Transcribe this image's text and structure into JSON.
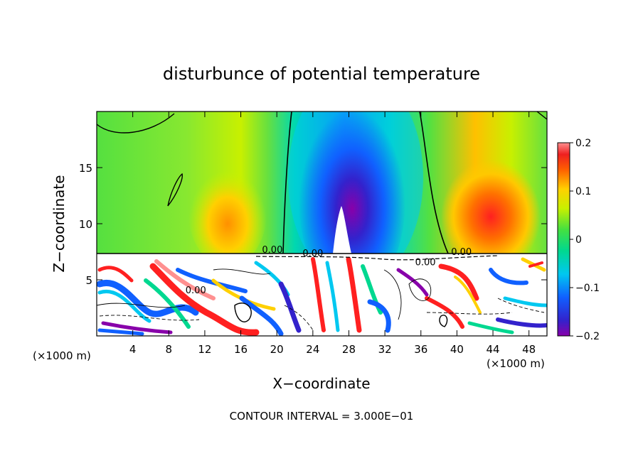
{
  "chart_data": {
    "type": "heatmap",
    "title": "disturbunce of potential temperature",
    "xlabel": "X−coordinate",
    "ylabel": "Z−coordinate",
    "x_unit_left": "(×1000 m)",
    "x_unit_right": "(×1000 m)",
    "footer": "CONTOUR INTERVAL = 3.000E−01",
    "xlim": [
      0,
      50
    ],
    "ylim": [
      0,
      20
    ],
    "x_ticks": [
      4,
      8,
      12,
      16,
      20,
      24,
      28,
      32,
      36,
      40,
      44,
      48
    ],
    "x_tick_labels": [
      "4",
      "8",
      "12",
      "16",
      "20",
      "24",
      "28",
      "32",
      "36",
      "40",
      "44",
      "48"
    ],
    "y_ticks": [
      5,
      10,
      15
    ],
    "y_tick_labels": [
      "5",
      "10",
      "15"
    ],
    "colorbar": {
      "range": [
        -0.2,
        0.2
      ],
      "tick_values": [
        0.2,
        0.1,
        0,
        -0.1,
        -0.2
      ],
      "tick_labels": [
        "0.2",
        "0.1",
        "0",
        "−0.1",
        "−0.2"
      ]
    },
    "contour_labels": [
      {
        "text": "0.00",
        "x": 19.5,
        "z": 7.4
      },
      {
        "text": "0.00",
        "x": 24.0,
        "z": 7.1
      },
      {
        "text": "0.00",
        "x": 40.5,
        "z": 7.2
      },
      {
        "text": "0.00",
        "x": 36.5,
        "z": 6.3
      },
      {
        "text": "0.00",
        "x": 11.0,
        "z": 3.8
      }
    ],
    "features": [
      {
        "name": "warm-anomaly-east",
        "x_center": 43.5,
        "z_center": 10.5,
        "value": 0.15
      },
      {
        "name": "cold-anomaly-center",
        "x_center": 28.5,
        "z_center": 11.5,
        "value": -0.2
      },
      {
        "name": "weak-cold-region",
        "x_range": [
          21,
          37
        ],
        "z_range": [
          7,
          20
        ],
        "value": -0.1
      },
      {
        "name": "warm-region-left",
        "x_center": 15,
        "z_center": 10,
        "value": 0.05
      },
      {
        "name": "turbulent-lower-layer",
        "z_range": [
          0,
          7.5
        ],
        "value_range": [
          -0.3,
          0.3
        ]
      }
    ]
  }
}
